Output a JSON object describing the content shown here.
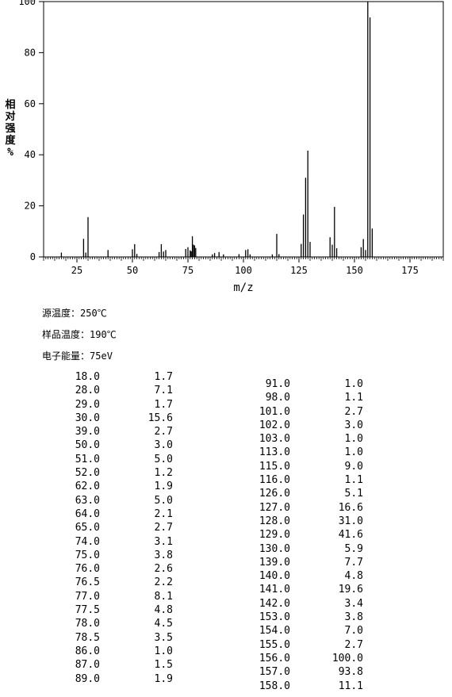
{
  "chart_data": {
    "type": "bar",
    "xlabel": "m/z",
    "ylabel": "相对强度 %",
    "xlim": [
      10,
      190
    ],
    "ylim": [
      0,
      100
    ],
    "xticks": [
      25,
      50,
      75,
      100,
      125,
      150,
      175
    ],
    "yticks": [
      0,
      20,
      40,
      60,
      80,
      100
    ],
    "peaks": [
      {
        "x": 18.0,
        "y": 1.7
      },
      {
        "x": 28.0,
        "y": 7.1
      },
      {
        "x": 29.0,
        "y": 1.7
      },
      {
        "x": 30.0,
        "y": 15.6
      },
      {
        "x": 39.0,
        "y": 2.7
      },
      {
        "x": 50.0,
        "y": 3.0
      },
      {
        "x": 51.0,
        "y": 5.0
      },
      {
        "x": 52.0,
        "y": 1.2
      },
      {
        "x": 62.0,
        "y": 1.9
      },
      {
        "x": 63.0,
        "y": 5.0
      },
      {
        "x": 64.0,
        "y": 2.1
      },
      {
        "x": 65.0,
        "y": 2.7
      },
      {
        "x": 74.0,
        "y": 3.1
      },
      {
        "x": 75.0,
        "y": 3.8
      },
      {
        "x": 76.0,
        "y": 2.6
      },
      {
        "x": 76.5,
        "y": 2.2
      },
      {
        "x": 77.0,
        "y": 8.1
      },
      {
        "x": 77.5,
        "y": 4.8
      },
      {
        "x": 78.0,
        "y": 4.5
      },
      {
        "x": 78.5,
        "y": 3.5
      },
      {
        "x": 86.0,
        "y": 1.0
      },
      {
        "x": 87.0,
        "y": 1.5
      },
      {
        "x": 89.0,
        "y": 1.9
      },
      {
        "x": 91.0,
        "y": 1.0
      },
      {
        "x": 98.0,
        "y": 1.1
      },
      {
        "x": 101.0,
        "y": 2.7
      },
      {
        "x": 102.0,
        "y": 3.0
      },
      {
        "x": 103.0,
        "y": 1.0
      },
      {
        "x": 113.0,
        "y": 1.0
      },
      {
        "x": 115.0,
        "y": 9.0
      },
      {
        "x": 116.0,
        "y": 1.1
      },
      {
        "x": 126.0,
        "y": 5.1
      },
      {
        "x": 127.0,
        "y": 16.6
      },
      {
        "x": 128.0,
        "y": 31.0
      },
      {
        "x": 129.0,
        "y": 41.6
      },
      {
        "x": 130.0,
        "y": 5.9
      },
      {
        "x": 139.0,
        "y": 7.7
      },
      {
        "x": 140.0,
        "y": 4.8
      },
      {
        "x": 141.0,
        "y": 19.6
      },
      {
        "x": 142.0,
        "y": 3.4
      },
      {
        "x": 153.0,
        "y": 3.8
      },
      {
        "x": 154.0,
        "y": 7.0
      },
      {
        "x": 155.0,
        "y": 2.7
      },
      {
        "x": 156.0,
        "y": 100.0
      },
      {
        "x": 157.0,
        "y": 93.8
      },
      {
        "x": 158.0,
        "y": 11.1
      }
    ]
  },
  "conditions": [
    {
      "label": "源温度：",
      "value": "250℃"
    },
    {
      "label": "样品温度：",
      "value": "190℃"
    },
    {
      "label": "电子能量：",
      "value": "75eV"
    }
  ],
  "table_left": [
    [
      "18.0",
      "1.7"
    ],
    [
      "28.0",
      "7.1"
    ],
    [
      "29.0",
      "1.7"
    ],
    [
      "30.0",
      "15.6"
    ],
    [
      "39.0",
      "2.7"
    ],
    [
      "50.0",
      "3.0"
    ],
    [
      "51.0",
      "5.0"
    ],
    [
      "52.0",
      "1.2"
    ],
    [
      "62.0",
      "1.9"
    ],
    [
      "63.0",
      "5.0"
    ],
    [
      "64.0",
      "2.1"
    ],
    [
      "65.0",
      "2.7"
    ],
    [
      "74.0",
      "3.1"
    ],
    [
      "75.0",
      "3.8"
    ],
    [
      "76.0",
      "2.6"
    ],
    [
      "76.5",
      "2.2"
    ],
    [
      "77.0",
      "8.1"
    ],
    [
      "77.5",
      "4.8"
    ],
    [
      "78.0",
      "4.5"
    ],
    [
      "78.5",
      "3.5"
    ],
    [
      "86.0",
      "1.0"
    ],
    [
      "87.0",
      "1.5"
    ],
    [
      "89.0",
      "1.9"
    ]
  ],
  "table_right": [
    [
      "91.0",
      "1.0"
    ],
    [
      "98.0",
      "1.1"
    ],
    [
      "101.0",
      "2.7"
    ],
    [
      "102.0",
      "3.0"
    ],
    [
      "103.0",
      "1.0"
    ],
    [
      "113.0",
      "1.0"
    ],
    [
      "115.0",
      "9.0"
    ],
    [
      "116.0",
      "1.1"
    ],
    [
      "126.0",
      "5.1"
    ],
    [
      "127.0",
      "16.6"
    ],
    [
      "128.0",
      "31.0"
    ],
    [
      "129.0",
      "41.6"
    ],
    [
      "130.0",
      "5.9"
    ],
    [
      "139.0",
      "7.7"
    ],
    [
      "140.0",
      "4.8"
    ],
    [
      "141.0",
      "19.6"
    ],
    [
      "142.0",
      "3.4"
    ],
    [
      "153.0",
      "3.8"
    ],
    [
      "154.0",
      "7.0"
    ],
    [
      "155.0",
      "2.7"
    ],
    [
      "156.0",
      "100.0"
    ],
    [
      "157.0",
      "93.8"
    ],
    [
      "158.0",
      "11.1"
    ]
  ]
}
